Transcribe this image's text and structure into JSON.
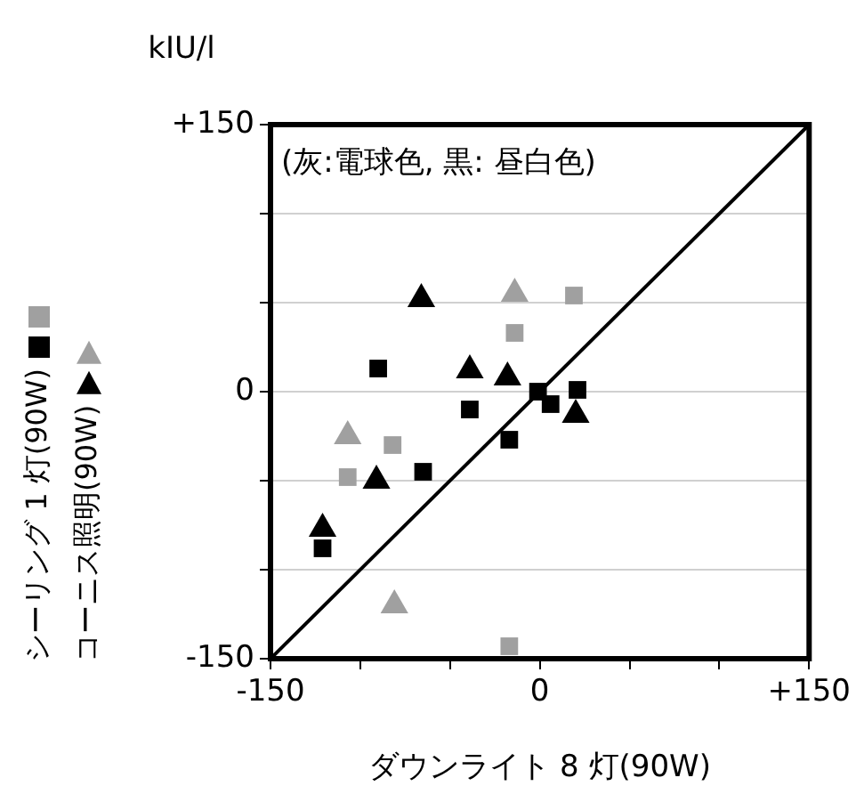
{
  "chart_data": {
    "type": "scatter",
    "xlabel": "ダウンライト 8 灯(90W)",
    "ylabel": "kIU/l",
    "annotations": [
      "(灰:電球色, 黒: 昼白色)"
    ],
    "xlim": [
      -150,
      150
    ],
    "ylim": [
      -150,
      150
    ],
    "xticks": [
      -150,
      {
        "value": -100,
        "label": null
      },
      {
        "value": -50,
        "label": null
      },
      0,
      {
        "value": 50,
        "label": null
      },
      {
        "value": 100,
        "label": null
      },
      {
        "value": 150,
        "label": "+150"
      }
    ],
    "yticks": [
      -150,
      {
        "value": -100,
        "label": null
      },
      {
        "value": -50,
        "label": null
      },
      0,
      {
        "value": 50,
        "label": null
      },
      {
        "value": 100,
        "label": null
      },
      {
        "value": 150,
        "label": "+150"
      }
    ],
    "grid": "y",
    "legend": "left",
    "series": [
      {
        "name": "シーリング 1 灯(90W)",
        "color": "#000000",
        "marker": "square",
        "x": [
          -90,
          -65,
          -39,
          -17,
          -1,
          6,
          21,
          -121
        ],
        "values": [
          13,
          -45,
          -10,
          -27,
          0,
          -7,
          1,
          -88
        ]
      },
      {
        "color": "#a0a0a0",
        "marker": "square",
        "x": [
          19,
          -14,
          -82,
          -107,
          -17
        ],
        "values": [
          54,
          33,
          -30,
          -48,
          -143
        ]
      },
      {
        "name": "コーニス照明(90W)",
        "color": "#000000",
        "marker": "triangle",
        "x": [
          -66,
          -91,
          -39,
          -18,
          20,
          -121
        ],
        "values": [
          52,
          -50,
          12,
          8,
          -13,
          -77
        ]
      },
      {
        "color": "#a0a0a0",
        "marker": "triangle",
        "x": [
          -14,
          -107,
          -81
        ],
        "values": [
          55,
          -25,
          -120
        ]
      },
      {
        "type": "line",
        "color": "#000000",
        "marker": "none",
        "x": [
          -150,
          150
        ],
        "values": [
          -150,
          150
        ]
      }
    ]
  }
}
